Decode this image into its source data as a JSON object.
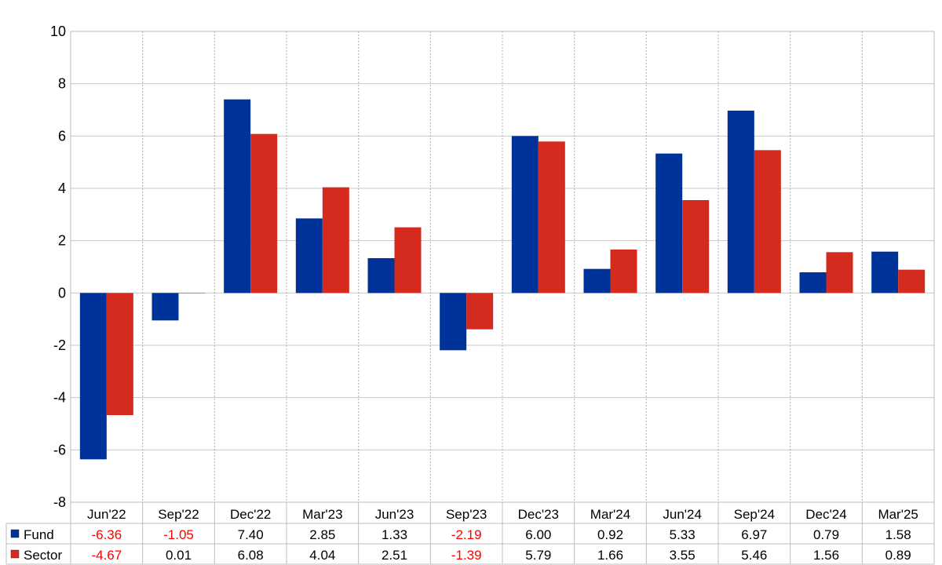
{
  "chart_data": {
    "type": "bar",
    "title": "",
    "xlabel": "",
    "ylabel": "",
    "ylim": [
      -8,
      10
    ],
    "yticks": [
      10,
      8,
      6,
      4,
      2,
      0,
      -2,
      -4,
      -6,
      -8
    ],
    "grid": true,
    "categories": [
      "Jun'22",
      "Sep'22",
      "Dec'22",
      "Mar'23",
      "Jun'23",
      "Sep'23",
      "Dec'23",
      "Mar'24",
      "Jun'24",
      "Sep'24",
      "Dec'24",
      "Mar'25"
    ],
    "series": [
      {
        "name": "Fund",
        "color": "#003399",
        "values": [
          -6.36,
          -1.05,
          7.4,
          2.85,
          1.33,
          -2.19,
          6.0,
          0.92,
          5.33,
          6.97,
          0.79,
          1.58
        ],
        "labels": [
          "-6.36",
          "-1.05",
          "7.40",
          "2.85",
          "1.33",
          "-2.19",
          "6.00",
          "0.92",
          "5.33",
          "6.97",
          "0.79",
          "1.58"
        ]
      },
      {
        "name": "Sector",
        "color": "#d52b1e",
        "values": [
          -4.67,
          0.01,
          6.08,
          4.04,
          2.51,
          -1.39,
          5.79,
          1.66,
          3.55,
          5.46,
          1.56,
          0.89
        ],
        "labels": [
          "-4.67",
          "0.01",
          "6.08",
          "4.04",
          "2.51",
          "-1.39",
          "5.79",
          "1.66",
          "3.55",
          "5.46",
          "1.56",
          "0.89"
        ]
      }
    ],
    "negative_value_color": "#ff0000",
    "legend": "data-table-left"
  }
}
